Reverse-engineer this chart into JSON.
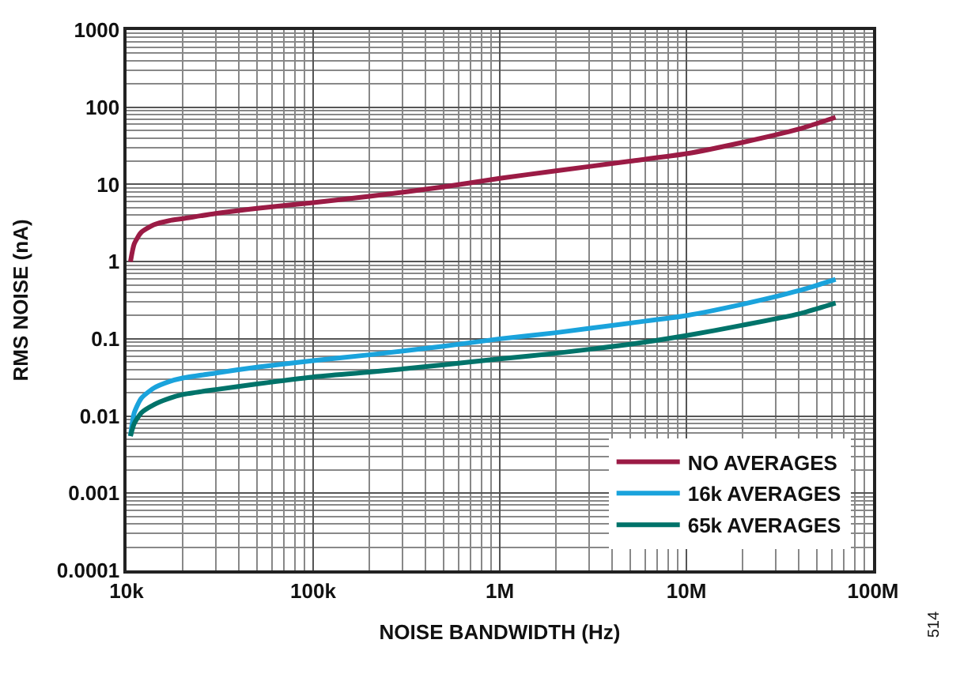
{
  "chart_data": {
    "type": "line",
    "xlabel": "NOISE BANDWIDTH (Hz)",
    "ylabel": "RMS NOISE (nA)",
    "log": "xy",
    "grid": true,
    "legend": "bottom right",
    "line_style": "solid",
    "marker": "none",
    "xlim": [
      10000,
      100000000
    ],
    "xticks": [
      {
        "value": 10000,
        "label": "10k"
      },
      {
        "value": 100000,
        "label": "100k"
      },
      {
        "value": 1000000,
        "label": "1M"
      },
      {
        "value": 10000000,
        "label": "10M"
      },
      {
        "value": 100000000,
        "label": "100M"
      }
    ],
    "ylim": [
      0.0001,
      1000
    ],
    "yticks": [
      0.0001,
      0.001,
      0.01,
      0.1,
      1,
      10,
      100,
      1000
    ],
    "x": [
      10500,
      11000,
      12000,
      14000,
      17000,
      20000,
      30000,
      50000,
      100000,
      200000,
      500000,
      1000000,
      2000000,
      5000000,
      10000000,
      20000000,
      40000000,
      63000000
    ],
    "series": [
      {
        "name": "NO AVERAGES",
        "color": "#9b1b45",
        "values": [
          1.0,
          1.7,
          2.4,
          3.0,
          3.4,
          3.6,
          4.2,
          4.9,
          5.8,
          7.0,
          9.3,
          12,
          15,
          20,
          25,
          35,
          52,
          74
        ]
      },
      {
        "name": "16k AVERAGES",
        "color": "#1aa3dc",
        "values": [
          0.0055,
          0.011,
          0.017,
          0.023,
          0.028,
          0.031,
          0.036,
          0.043,
          0.052,
          0.062,
          0.08,
          0.1,
          0.12,
          0.16,
          0.2,
          0.28,
          0.42,
          0.59
        ]
      },
      {
        "name": "65k AVERAGES",
        "color": "#00736a",
        "values": [
          0.0055,
          0.008,
          0.011,
          0.014,
          0.017,
          0.019,
          0.022,
          0.026,
          0.032,
          0.037,
          0.046,
          0.055,
          0.065,
          0.085,
          0.11,
          0.15,
          0.21,
          0.29
        ]
      }
    ],
    "annotations": [
      "514"
    ]
  }
}
